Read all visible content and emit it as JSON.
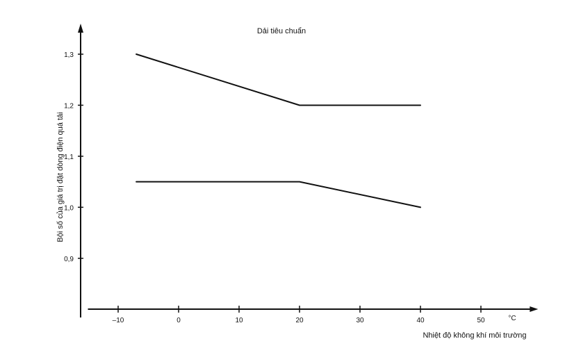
{
  "chart_data": {
    "type": "line",
    "title": "Dải tiêu chuẩn",
    "xlabel": "Nhiệt độ không khí môi trường",
    "ylabel": "Bội số của giá trị đặt dòng điện quá tải",
    "x_unit": "°C",
    "xlim": [
      -15,
      59
    ],
    "ylim": [
      0.8,
      1.35
    ],
    "x_ticks": [
      -10,
      0,
      10,
      20,
      30,
      40,
      50
    ],
    "x_tick_labels": [
      "–10",
      "0",
      "10",
      "20",
      "30",
      "40",
      "50"
    ],
    "y_ticks": [
      0.9,
      1.0,
      1.1,
      1.2,
      1.3
    ],
    "y_tick_labels": [
      "0,9",
      "1,0",
      "1,1",
      "1,2",
      "1,3"
    ],
    "grid": false,
    "series": [
      {
        "x": [
          -7,
          20,
          40
        ],
        "y": [
          1.3,
          1.2,
          1.2
        ]
      },
      {
        "x": [
          -7,
          20,
          40
        ],
        "y": [
          1.05,
          1.05,
          1.0
        ]
      }
    ],
    "colors": {
      "line": "#111111",
      "background": "#ffffff"
    }
  }
}
